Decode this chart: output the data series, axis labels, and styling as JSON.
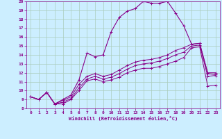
{
  "xlabel": "Windchill (Refroidissement éolien,°C)",
  "bg_color": "#cceeff",
  "line_color": "#880088",
  "grid_color": "#aaccbb",
  "xlim": [
    -0.5,
    23.5
  ],
  "ylim": [
    8,
    20
  ],
  "xticks": [
    0,
    1,
    2,
    3,
    4,
    5,
    6,
    7,
    8,
    9,
    10,
    11,
    12,
    13,
    14,
    15,
    16,
    17,
    18,
    19,
    20,
    21,
    22,
    23
  ],
  "yticks": [
    8,
    9,
    10,
    11,
    12,
    13,
    14,
    15,
    16,
    17,
    18,
    19,
    20
  ],
  "series": [
    [
      9.3,
      9.0,
      9.8,
      8.5,
      8.5,
      9.0,
      10.0,
      11.1,
      11.3,
      11.0,
      11.2,
      11.5,
      12.0,
      12.3,
      12.5,
      12.5,
      12.7,
      13.0,
      13.3,
      13.7,
      14.8,
      14.9,
      10.5,
      10.6
    ],
    [
      9.3,
      9.0,
      9.8,
      8.5,
      8.7,
      9.1,
      10.3,
      11.3,
      11.6,
      11.3,
      11.5,
      11.9,
      12.4,
      12.8,
      13.0,
      13.1,
      13.3,
      13.6,
      14.0,
      14.3,
      15.0,
      15.1,
      11.6,
      11.7
    ],
    [
      9.3,
      9.0,
      9.8,
      8.5,
      8.9,
      9.3,
      10.7,
      11.6,
      11.9,
      11.6,
      11.8,
      12.3,
      12.8,
      13.2,
      13.4,
      13.5,
      13.7,
      14.0,
      14.5,
      14.8,
      15.2,
      15.3,
      12.0,
      12.0
    ],
    [
      9.3,
      9.0,
      9.8,
      8.5,
      9.0,
      9.5,
      11.2,
      14.2,
      13.8,
      14.0,
      16.6,
      18.2,
      18.9,
      19.2,
      20.0,
      19.8,
      19.8,
      20.0,
      18.7,
      17.3,
      15.2,
      15.3,
      11.9,
      11.8
    ]
  ]
}
